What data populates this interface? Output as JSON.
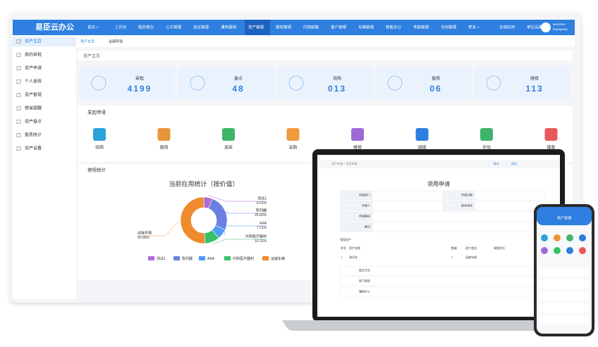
{
  "nav": {
    "logo": "易臣云办公",
    "items": [
      "首页 >",
      "工作台",
      "服务暂办",
      "公文管理",
      "会议管理",
      "通用报销",
      "资产管理",
      "绩效管理",
      "内部邮箱",
      "客户管理",
      "车辆管理",
      "智能办公",
      "考勤管理",
      "合同管理",
      "更多 >",
      "全部应用",
      "单位设置"
    ],
    "user": [
      "welcome",
      "huangxtao"
    ]
  },
  "sidebar": [
    "资产主页",
    "我的审批",
    "资产申请",
    "个人使用",
    "资产管理",
    "维保提醒",
    "资产盘点",
    "报表统计",
    "资产设置"
  ],
  "tabs": [
    "资产主页",
    "全部申请"
  ],
  "breadcrumb": "资产主页",
  "stats": [
    {
      "label": "审批",
      "value": "4199"
    },
    {
      "label": "盘点",
      "value": "48"
    },
    {
      "label": "领用",
      "value": "013"
    },
    {
      "label": "借用",
      "value": "06"
    },
    {
      "label": "维修",
      "value": "113"
    }
  ],
  "apply": {
    "title": "发起申请",
    "items": [
      "领用",
      "借用",
      "退库",
      "采购",
      "维修",
      "调拨",
      "评估",
      "报废"
    ]
  },
  "usage_title": "使用统计",
  "chart_data": {
    "type": "pie",
    "title": "当前在用统计（按价值）",
    "categories": [
      "测试1",
      "陈列器",
      "AAA",
      "外购医疗器材",
      "运输车辆"
    ],
    "values": [
      6.01,
      25.62,
      7.21,
      10.31,
      50.85
    ],
    "value_labels": [
      "6.01%",
      "25.62%",
      "7.21%",
      "10.31%",
      "50.85%"
    ],
    "colors": [
      "#b06ad8",
      "#6b7fe0",
      "#4f9cf5",
      "#35c26a",
      "#f08a2c"
    ]
  },
  "laptop": {
    "title": "领用申请",
    "breadcrumb": "资产申请 > 领用申请",
    "fields": [
      "申请部门",
      "申请日期",
      "申请人",
      "联系电话",
      "申请事由",
      "备注"
    ],
    "section": "领用资产",
    "headers": [
      "序号",
      "资产名称",
      "数量",
      "资产类型",
      "规格型号"
    ],
    "row": [
      "1",
      "测试车",
      "1",
      "运输车辆"
    ],
    "flow": [
      "提交方式",
      "部门审核",
      "辅助办公"
    ],
    "buttons": [
      "提交",
      "保存"
    ]
  },
  "phone": {
    "title": "资产管理"
  }
}
